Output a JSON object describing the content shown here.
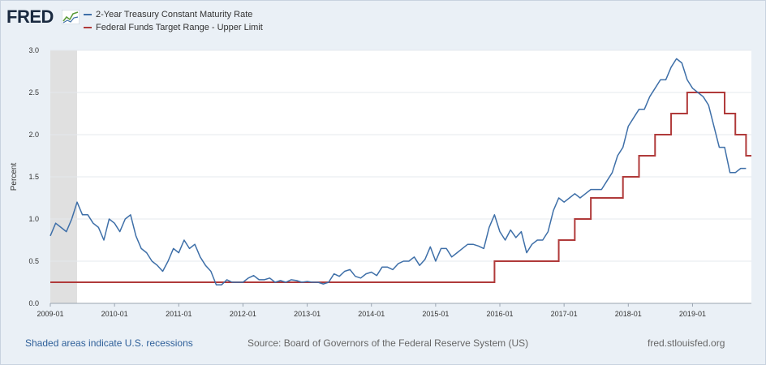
{
  "brand": {
    "logo_text": "FRED",
    "website": "fred.stlouisfed.org"
  },
  "footer": {
    "recession_note": "Shaded areas indicate U.S. recessions",
    "source": "Source: Board of Governors of the Federal Reserve System (US)",
    "website": "fred.stlouisfed.org"
  },
  "colors": {
    "two_year": "#3e6fa8",
    "fed_funds": "#b03a3a",
    "recession": "#e0e0e0",
    "grid": "#e5e8ed"
  },
  "chart_data": {
    "type": "line",
    "title": "",
    "xlabel": "",
    "ylabel": "Percent",
    "xlim": [
      "2009-01",
      "2019-12"
    ],
    "ylim": [
      0.0,
      3.0
    ],
    "grid": true,
    "legend_position": "top-left",
    "y_ticks": [
      "0.0",
      "0.5",
      "1.0",
      "1.5",
      "2.0",
      "2.5",
      "3.0"
    ],
    "x_ticks": [
      "2009-01",
      "2010-01",
      "2011-01",
      "2012-01",
      "2013-01",
      "2014-01",
      "2015-01",
      "2016-01",
      "2017-01",
      "2018-01",
      "2019-01"
    ],
    "recessions": [
      {
        "start": "2009-01",
        "end": "2009-06"
      }
    ],
    "series": [
      {
        "name": "2-Year Treasury Constant Maturity Rate",
        "color": "#3e6fa8",
        "x": [
          "2009-01",
          "2009-02",
          "2009-03",
          "2009-04",
          "2009-05",
          "2009-06",
          "2009-07",
          "2009-08",
          "2009-09",
          "2009-10",
          "2009-11",
          "2009-12",
          "2010-01",
          "2010-02",
          "2010-03",
          "2010-04",
          "2010-05",
          "2010-06",
          "2010-07",
          "2010-08",
          "2010-09",
          "2010-10",
          "2010-11",
          "2010-12",
          "2011-01",
          "2011-02",
          "2011-03",
          "2011-04",
          "2011-05",
          "2011-06",
          "2011-07",
          "2011-08",
          "2011-09",
          "2011-10",
          "2011-11",
          "2011-12",
          "2012-01",
          "2012-02",
          "2012-03",
          "2012-04",
          "2012-05",
          "2012-06",
          "2012-07",
          "2012-08",
          "2012-09",
          "2012-10",
          "2012-11",
          "2012-12",
          "2013-01",
          "2013-02",
          "2013-03",
          "2013-04",
          "2013-05",
          "2013-06",
          "2013-07",
          "2013-08",
          "2013-09",
          "2013-10",
          "2013-11",
          "2013-12",
          "2014-01",
          "2014-02",
          "2014-03",
          "2014-04",
          "2014-05",
          "2014-06",
          "2014-07",
          "2014-08",
          "2014-09",
          "2014-10",
          "2014-11",
          "2014-12",
          "2015-01",
          "2015-02",
          "2015-03",
          "2015-04",
          "2015-05",
          "2015-06",
          "2015-07",
          "2015-08",
          "2015-09",
          "2015-10",
          "2015-11",
          "2015-12",
          "2016-01",
          "2016-02",
          "2016-03",
          "2016-04",
          "2016-05",
          "2016-06",
          "2016-07",
          "2016-08",
          "2016-09",
          "2016-10",
          "2016-11",
          "2016-12",
          "2017-01",
          "2017-02",
          "2017-03",
          "2017-04",
          "2017-05",
          "2017-06",
          "2017-07",
          "2017-08",
          "2017-09",
          "2017-10",
          "2017-11",
          "2017-12",
          "2018-01",
          "2018-02",
          "2018-03",
          "2018-04",
          "2018-05",
          "2018-06",
          "2018-07",
          "2018-08",
          "2018-09",
          "2018-10",
          "2018-11",
          "2018-12",
          "2019-01",
          "2019-02",
          "2019-03",
          "2019-04",
          "2019-05",
          "2019-06",
          "2019-07",
          "2019-08",
          "2019-09",
          "2019-10",
          "2019-11"
        ],
        "values": [
          0.8,
          0.95,
          0.9,
          0.85,
          1.0,
          1.2,
          1.05,
          1.05,
          0.95,
          0.9,
          0.75,
          1.0,
          0.95,
          0.85,
          1.0,
          1.05,
          0.8,
          0.65,
          0.6,
          0.5,
          0.45,
          0.38,
          0.5,
          0.65,
          0.6,
          0.75,
          0.65,
          0.7,
          0.55,
          0.45,
          0.38,
          0.22,
          0.22,
          0.28,
          0.25,
          0.25,
          0.25,
          0.3,
          0.33,
          0.28,
          0.28,
          0.3,
          0.25,
          0.27,
          0.25,
          0.28,
          0.27,
          0.25,
          0.26,
          0.25,
          0.25,
          0.23,
          0.25,
          0.35,
          0.32,
          0.38,
          0.4,
          0.32,
          0.3,
          0.35,
          0.37,
          0.33,
          0.43,
          0.43,
          0.4,
          0.47,
          0.5,
          0.5,
          0.55,
          0.45,
          0.52,
          0.67,
          0.5,
          0.65,
          0.65,
          0.55,
          0.6,
          0.65,
          0.7,
          0.7,
          0.68,
          0.65,
          0.9,
          1.05,
          0.85,
          0.75,
          0.87,
          0.78,
          0.85,
          0.6,
          0.7,
          0.75,
          0.75,
          0.85,
          1.1,
          1.25,
          1.2,
          1.25,
          1.3,
          1.25,
          1.3,
          1.35,
          1.35,
          1.35,
          1.45,
          1.55,
          1.75,
          1.85,
          2.1,
          2.2,
          2.3,
          2.3,
          2.45,
          2.55,
          2.65,
          2.65,
          2.8,
          2.9,
          2.85,
          2.65,
          2.55,
          2.5,
          2.45,
          2.35,
          2.1,
          1.85,
          1.85,
          1.55,
          1.55,
          1.6,
          1.6
        ]
      },
      {
        "name": "Federal Funds Target Range - Upper Limit",
        "color": "#b03a3a",
        "x": [
          "2009-01",
          "2015-12",
          "2016-12",
          "2017-03",
          "2017-06",
          "2017-12",
          "2018-03",
          "2018-06",
          "2018-09",
          "2018-12",
          "2019-07",
          "2019-09",
          "2019-11"
        ],
        "values": [
          0.25,
          0.5,
          0.75,
          1.0,
          1.25,
          1.5,
          1.75,
          2.0,
          2.25,
          2.5,
          2.25,
          2.0,
          1.75
        ]
      }
    ]
  }
}
